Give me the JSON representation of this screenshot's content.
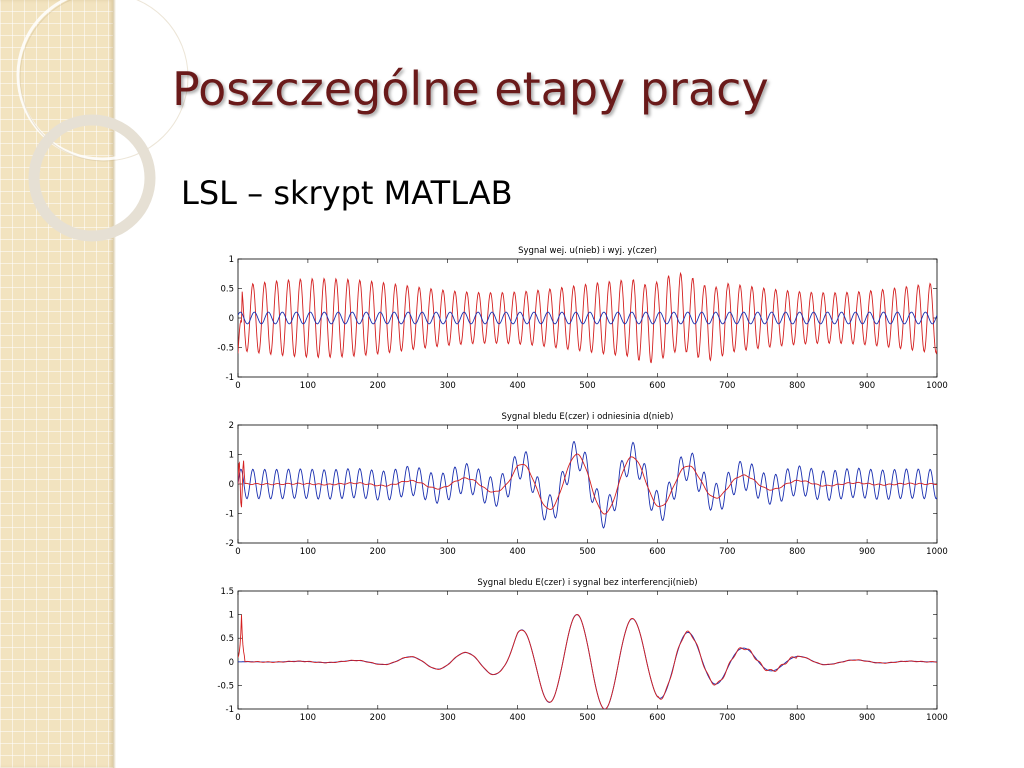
{
  "slide": {
    "title": "Poszczególne etapy pracy",
    "subtitle": "LSL – skrypt MATLAB"
  },
  "colors": {
    "title": "#6a1a1a",
    "sidebar": "#f2e3bf",
    "red_series": "#d42020",
    "blue_series": "#1a2fb0"
  },
  "chart_data": [
    {
      "type": "line",
      "title": "Sygnal wej. u(nieb) i wyj. y(czer)",
      "xlim": [
        0,
        1000
      ],
      "ylim": [
        -1,
        1
      ],
      "xticks": [
        0,
        100,
        200,
        300,
        400,
        500,
        600,
        700,
        800,
        900,
        1000
      ],
      "yticks": [
        -1,
        -0.5,
        0,
        0.5,
        1
      ],
      "ytick_labels": [
        "-1",
        "-0.5",
        "0",
        "0.5",
        "1"
      ],
      "series": [
        {
          "color": "blue",
          "amplitude": 0.1,
          "period": 20,
          "description": "steady small sinusoid"
        },
        {
          "color": "red",
          "amplitude": 0.55,
          "period": 17,
          "amplitude_range": [
            0.4,
            0.7
          ]
        }
      ]
    },
    {
      "type": "line",
      "title": "Sygnal bledu E(czer) i odniesinia d(nieb)",
      "xlim": [
        0,
        1000
      ],
      "ylim": [
        -2,
        2
      ],
      "xticks": [
        0,
        100,
        200,
        300,
        400,
        500,
        600,
        700,
        800,
        900,
        1000
      ],
      "yticks": [
        -2,
        -1,
        0,
        1,
        2
      ],
      "ytick_labels": [
        "-2",
        "-1",
        "0",
        "1",
        "2"
      ],
      "series": [
        {
          "color": "blue",
          "interference_amplitude": 0.5,
          "period": 17
        },
        {
          "color": "red",
          "envelope": [
            [
              0,
              0
            ],
            [
              150,
              0.02
            ],
            [
              200,
              0.05
            ],
            [
              280,
              0.15
            ],
            [
              330,
              0.2
            ],
            [
              380,
              0.3
            ],
            [
              400,
              0.65
            ],
            [
              430,
              0.8
            ],
            [
              480,
              1.0
            ],
            [
              530,
              1.0
            ],
            [
              570,
              0.9
            ],
            [
              610,
              0.75
            ],
            [
              650,
              0.6
            ],
            [
              690,
              0.45
            ],
            [
              720,
              0.3
            ],
            [
              760,
              0.2
            ],
            [
              800,
              0.12
            ],
            [
              850,
              0.05
            ],
            [
              1000,
              0
            ]
          ],
          "period": 80
        }
      ]
    },
    {
      "type": "line",
      "title": "Sygnal bledu E(czer) i sygnal bez interferencji(nieb)",
      "xlim": [
        0,
        1000
      ],
      "ylim": [
        -1,
        1.5
      ],
      "xticks": [
        0,
        100,
        200,
        300,
        400,
        500,
        600,
        700,
        800,
        900,
        1000
      ],
      "yticks": [
        -1,
        -0.5,
        0,
        0.5,
        1,
        1.5
      ],
      "ytick_labels": [
        "-1",
        "-0.5",
        "0",
        "0.5",
        "1",
        "1.5"
      ],
      "series": [
        {
          "color": "blue",
          "envelope": [
            [
              0,
              0
            ],
            [
              150,
              0.02
            ],
            [
              200,
              0.05
            ],
            [
              280,
              0.15
            ],
            [
              330,
              0.2
            ],
            [
              380,
              0.3
            ],
            [
              400,
              0.65
            ],
            [
              430,
              0.8
            ],
            [
              480,
              1.0
            ],
            [
              530,
              1.0
            ],
            [
              570,
              0.9
            ],
            [
              610,
              0.75
            ],
            [
              650,
              0.6
            ],
            [
              690,
              0.45
            ],
            [
              720,
              0.3
            ],
            [
              760,
              0.2
            ],
            [
              800,
              0.12
            ],
            [
              850,
              0.05
            ],
            [
              1000,
              0
            ]
          ],
          "period": 80
        },
        {
          "color": "red",
          "envelope": [
            [
              0,
              0
            ],
            [
              150,
              0.02
            ],
            [
              200,
              0.05
            ],
            [
              280,
              0.15
            ],
            [
              330,
              0.2
            ],
            [
              380,
              0.3
            ],
            [
              400,
              0.65
            ],
            [
              430,
              0.8
            ],
            [
              480,
              1.0
            ],
            [
              530,
              1.0
            ],
            [
              570,
              0.9
            ],
            [
              610,
              0.75
            ],
            [
              650,
              0.6
            ],
            [
              690,
              0.45
            ],
            [
              720,
              0.3
            ],
            [
              760,
              0.2
            ],
            [
              800,
              0.12
            ],
            [
              850,
              0.05
            ],
            [
              1000,
              0
            ]
          ],
          "period": 80,
          "initial_spike": 1.05
        }
      ]
    }
  ]
}
